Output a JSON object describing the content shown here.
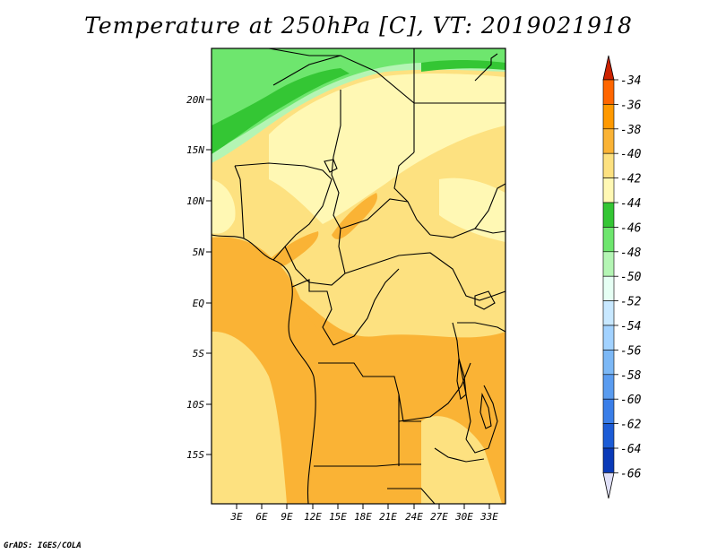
{
  "title": "Temperature at 250hPa [C], VT: 2019021918",
  "credit": "GrADS: IGES/COLA",
  "map": {
    "variable": "Temperature",
    "level": "250hPa",
    "units": "C",
    "valid_time": "2019021918",
    "lat_labels": [
      "20N",
      "15N",
      "10N",
      "5N",
      "EQ",
      "5S",
      "10S",
      "15S"
    ],
    "lon_labels": [
      "3E",
      "6E",
      "9E",
      "12E",
      "15E",
      "18E",
      "21E",
      "24E",
      "27E",
      "30E",
      "33E"
    ]
  },
  "colorbar": {
    "labels": [
      "-34",
      "-36",
      "-38",
      "-40",
      "-42",
      "-44",
      "-46",
      "-48",
      "-50",
      "-52",
      "-54",
      "-56",
      "-58",
      "-60",
      "-62",
      "-64",
      "-66"
    ],
    "colors": [
      "#cc2200",
      "#ff6600",
      "#ff9900",
      "#fab335",
      "#fde180",
      "#fff8b4",
      "#34c634",
      "#6ee66e",
      "#b4f5b4",
      "#e6fff4",
      "#c8e8ff",
      "#a2d2ff",
      "#7cb8f6",
      "#5a9cf0",
      "#3a7ee8",
      "#1c5cd6",
      "#0a3ab8",
      "#061a80",
      "#e0e0f8"
    ]
  }
}
